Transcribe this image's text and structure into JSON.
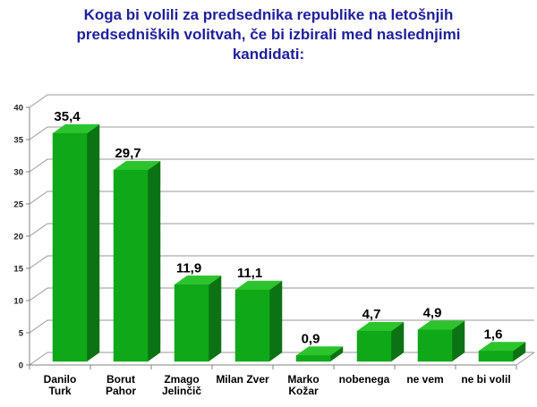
{
  "title_text": "Koga bi volili za predsednika republike na letošnjih\npredsedniških volitvah, če bi izbirali med naslednjimi\nkandidati:",
  "chart_data": {
    "type": "bar",
    "style": "3d-column",
    "title": "Koga bi volili za predsednika republike na letošnjih predsedniških volitvah, če bi izbirali med naslednjimi kandidati:",
    "categories": [
      "Danilo Turk",
      "Borut Pahor",
      "Zmago Jelinčič",
      "Milan Zver",
      "Marko Kožar",
      "nobenega",
      "ne vem",
      "ne bi volil"
    ],
    "category_label_lines": [
      [
        "Danilo",
        "Turk"
      ],
      [
        "Borut",
        "Pahor"
      ],
      [
        "Zmago",
        "Jelinčič"
      ],
      [
        "Milan Zver"
      ],
      [
        "Marko",
        "Kožar"
      ],
      [
        "nobenega"
      ],
      [
        "ne vem"
      ],
      [
        "ne bi volil"
      ]
    ],
    "values": [
      35.4,
      29.7,
      11.9,
      11.1,
      0.9,
      4.7,
      4.9,
      1.6
    ],
    "value_labels": [
      "35,4",
      "29,7",
      "11,9",
      "11,1",
      "0,9",
      "4,7",
      "4,9",
      "1,6"
    ],
    "xlabel": "",
    "ylabel": "",
    "ylim": [
      0,
      40
    ],
    "yticks": [
      0,
      5,
      10,
      15,
      20,
      25,
      30,
      35,
      40
    ],
    "grid": true,
    "legend": "none",
    "colors": {
      "title": "#1F1F9C",
      "bar_front": "#0FA818",
      "bar_top": "#2CC42C",
      "bar_side": "#0B7313",
      "gridline": "#999999",
      "axis": "#808080",
      "value_label": "#000000",
      "tick_label": "#222222",
      "category_label": "#000000",
      "background": "#FFFFFF"
    }
  }
}
